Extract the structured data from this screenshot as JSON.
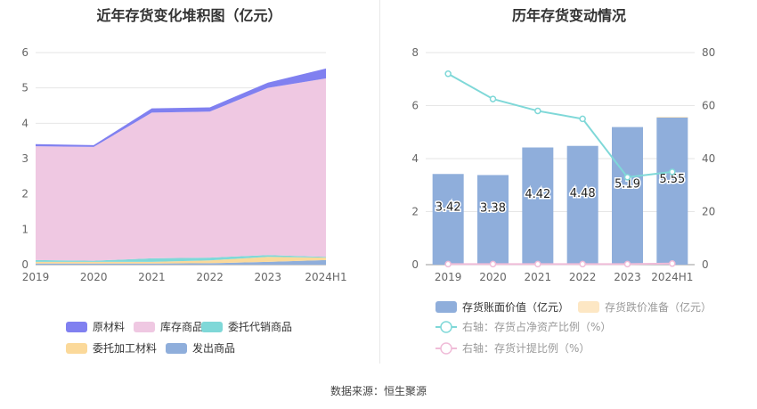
{
  "left_title": "近年存货变化堆积图（亿元）",
  "right_title": "历年存货变动情况",
  "source": "数据来源：恒生聚源",
  "colors": {
    "raw": "#8080f0",
    "stock": "#efc8e2",
    "consign": "#7fd8d8",
    "process": "#fbd99a",
    "shipped": "#8faedb",
    "bar": "#8faedb",
    "reserve": "#fde7c4",
    "line1": "#7fd8d8",
    "line2": "#f0bcd8"
  },
  "chart_data": [
    {
      "type": "area",
      "title": "近年存货变化堆积图（亿元）",
      "categories": [
        "2019",
        "2020",
        "2021",
        "2022",
        "2023",
        "2024H1"
      ],
      "ylim": [
        0,
        6
      ],
      "yticks": [
        "0",
        "1",
        "2",
        "3",
        "4",
        "5",
        "6"
      ],
      "legend_placement": "bottom",
      "series": [
        {
          "name": "原材料",
          "color_key": "raw",
          "values": [
            0.06,
            0.05,
            0.12,
            0.12,
            0.15,
            0.28
          ]
        },
        {
          "name": "库存商品",
          "color_key": "stock",
          "values": [
            3.22,
            3.22,
            4.12,
            4.13,
            4.73,
            5.05
          ]
        },
        {
          "name": "委托代销商品",
          "color_key": "consign",
          "values": [
            0.05,
            0.03,
            0.1,
            0.08,
            0.05,
            0.02
          ]
        },
        {
          "name": "委托加工材料",
          "color_key": "process",
          "values": [
            0.05,
            0.05,
            0.05,
            0.08,
            0.14,
            0.07
          ]
        },
        {
          "name": "发出商品",
          "color_key": "shipped",
          "values": [
            0.03,
            0.03,
            0.03,
            0.04,
            0.08,
            0.13
          ]
        }
      ],
      "stack_order": [
        "发出商品",
        "委托加工材料",
        "委托代销商品",
        "库存商品",
        "原材料"
      ],
      "legend_rows": [
        [
          "原材料",
          "库存商品",
          "委托代销商品"
        ],
        [
          "委托加工材料",
          "发出商品"
        ]
      ]
    },
    {
      "type": "bar",
      "title": "历年存货变动情况",
      "categories": [
        "2019",
        "2020",
        "2021",
        "2022",
        "2023",
        "2024H1"
      ],
      "ylim": [
        0,
        8
      ],
      "yticks": [
        "0",
        "2",
        "4",
        "6",
        "8"
      ],
      "y2lim": [
        0,
        80
      ],
      "y2ticks": [
        "0",
        "20",
        "40",
        "60",
        "80"
      ],
      "legend_placement": "bottom",
      "series": [
        {
          "name": "存货账面价值（亿元）",
          "kind": "bar",
          "axis": "left",
          "values": [
            3.42,
            3.38,
            4.42,
            4.48,
            5.19,
            5.55
          ],
          "labels": [
            "3.42",
            "3.38",
            "4.42",
            "4.48",
            "5.19",
            "5.55"
          ]
        },
        {
          "name": "存货跌价准备（亿元）",
          "kind": "bar",
          "axis": "left",
          "values": [
            0,
            0,
            0,
            0,
            0,
            0.03
          ]
        },
        {
          "name": "右轴：存货占净资产比例（%）",
          "kind": "line",
          "axis": "right",
          "values": [
            72,
            62.5,
            58,
            55,
            33,
            35
          ]
        },
        {
          "name": "右轴：存货计提比例（%）",
          "kind": "line",
          "axis": "right",
          "values": [
            0.2,
            0.2,
            0.2,
            0.2,
            0.2,
            0.4
          ]
        }
      ]
    }
  ]
}
